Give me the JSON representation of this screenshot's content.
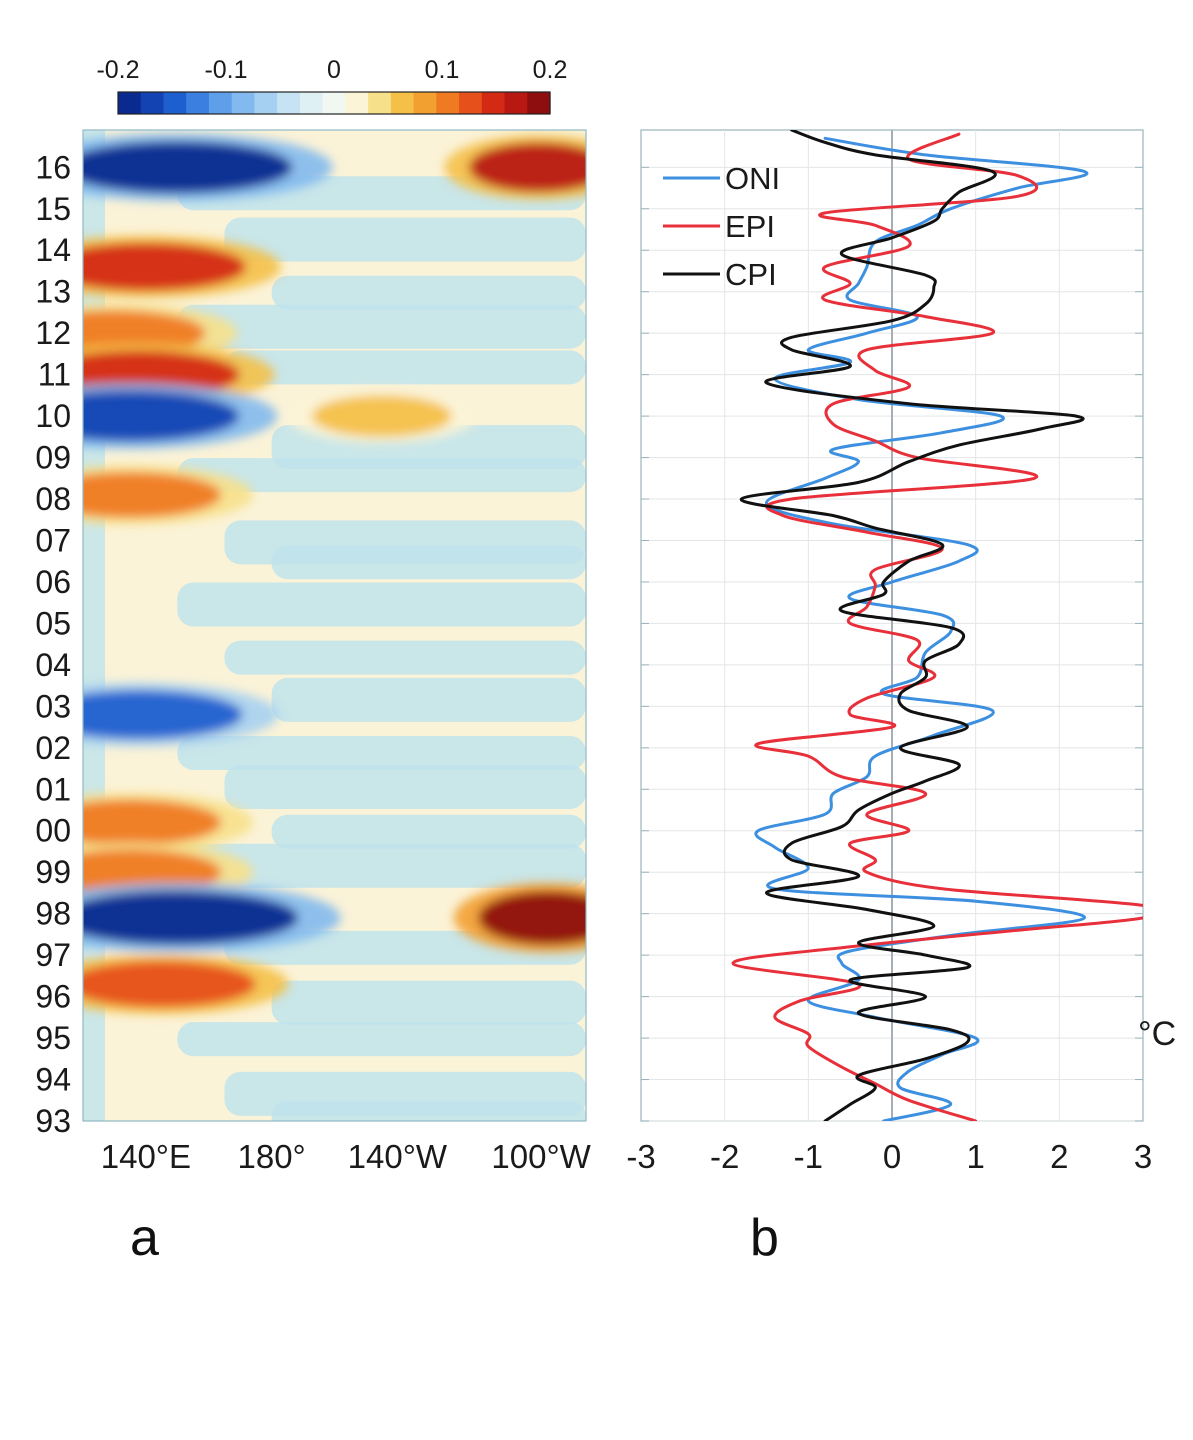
{
  "colorbar": {
    "tick_labels": [
      "-0.2",
      "-0.1",
      "0",
      "0.1",
      "0.2"
    ],
    "tick_values": [
      -0.2,
      -0.1,
      0,
      0.1,
      0.2
    ],
    "range": [
      -0.2,
      0.2
    ],
    "colors": [
      "#0a2a8f",
      "#1342b3",
      "#1e5fcf",
      "#3b80e0",
      "#5f9ee8",
      "#82b9ee",
      "#a6d0f1",
      "#c6e3f3",
      "#dff0f4",
      "#f1f8f1",
      "#fbf4d6",
      "#f7e08a",
      "#f4c048",
      "#f2a030",
      "#ef7a22",
      "#e6501a",
      "#d42a14",
      "#b81812",
      "#8e0d0e"
    ]
  },
  "chart_data": [
    {
      "type": "heatmap",
      "panel_label": "a",
      "x_tick_labels": [
        "140°E",
        "180°",
        "140°W",
        "100°W"
      ],
      "x_range_deg_east": [
        120,
        280
      ],
      "x_ticks_deg_east": [
        140,
        180,
        220,
        260
      ],
      "y_tick_labels": [
        "16",
        "15",
        "14",
        "13",
        "12",
        "11",
        "10",
        "09",
        "08",
        "07",
        "06",
        "05",
        "04",
        "03",
        "02",
        "01",
        "00",
        "99",
        "98",
        "97",
        "96",
        "95",
        "94",
        "93"
      ],
      "y_range": [
        1993,
        2016.9
      ],
      "contour_interval": 0.025,
      "anomalies": [
        {
          "year": 2016.0,
          "lon": 150,
          "value": -0.2
        },
        {
          "year": 2016.0,
          "lon": 265,
          "value": 0.17
        },
        {
          "year": 2013.6,
          "lon": 140,
          "value": 0.15
        },
        {
          "year": 2012.0,
          "lon": 130,
          "value": 0.12
        },
        {
          "year": 2011.0,
          "lon": 138,
          "value": 0.15
        },
        {
          "year": 2010.0,
          "lon": 135,
          "value": -0.18
        },
        {
          "year": 2010.0,
          "lon": 215,
          "value": 0.07
        },
        {
          "year": 2008.1,
          "lon": 135,
          "value": 0.12
        },
        {
          "year": 2002.8,
          "lon": 138,
          "value": -0.16
        },
        {
          "year": 2000.2,
          "lon": 135,
          "value": 0.12
        },
        {
          "year": 1999.0,
          "lon": 135,
          "value": 0.12
        },
        {
          "year": 1997.9,
          "lon": 150,
          "value": -0.22
        },
        {
          "year": 1997.9,
          "lon": 268,
          "value": 0.22
        },
        {
          "year": 1996.3,
          "lon": 145,
          "value": 0.13
        }
      ]
    },
    {
      "type": "line",
      "panel_label": "b",
      "unit_label": "°C",
      "orientation": "horizontal-values-vertical-time",
      "x_tick_labels": [
        "-3",
        "-2",
        "-1",
        "0",
        "1",
        "2",
        "3"
      ],
      "x_range": [
        -3,
        3
      ],
      "y_range": [
        1993,
        2016.9
      ],
      "grid": true,
      "legend_placement": "top-left",
      "series": [
        {
          "name": "ONI",
          "color": "#3d8fe0",
          "points": [
            [
              1993,
              -0.1
            ],
            [
              1993.4,
              0.7
            ],
            [
              1993.8,
              0.1
            ],
            [
              1994.2,
              0.2
            ],
            [
              1994.6,
              0.6
            ],
            [
              1995.0,
              1.0
            ],
            [
              1995.5,
              -0.2
            ],
            [
              1995.9,
              -1.0
            ],
            [
              1996.4,
              -0.4
            ],
            [
              1996.8,
              -0.6
            ],
            [
              1997.1,
              -0.5
            ],
            [
              1997.5,
              0.8
            ],
            [
              1997.9,
              2.3
            ],
            [
              1998.3,
              1.0
            ],
            [
              1998.6,
              -1.4
            ],
            [
              1999.1,
              -1.0
            ],
            [
              1999.6,
              -1.4
            ],
            [
              2000.0,
              -1.6
            ],
            [
              2000.4,
              -0.8
            ],
            [
              2000.9,
              -0.7
            ],
            [
              2001.3,
              -0.3
            ],
            [
              2001.8,
              -0.2
            ],
            [
              2002.3,
              0.5
            ],
            [
              2002.9,
              1.2
            ],
            [
              2003.3,
              -0.1
            ],
            [
              2003.7,
              0.3
            ],
            [
              2004.3,
              0.4
            ],
            [
              2004.8,
              0.7
            ],
            [
              2005.2,
              0.6
            ],
            [
              2005.6,
              -0.5
            ],
            [
              2006.0,
              0.0
            ],
            [
              2006.5,
              0.8
            ],
            [
              2006.9,
              0.9
            ],
            [
              2007.4,
              -0.7
            ],
            [
              2007.9,
              -1.5
            ],
            [
              2008.5,
              -0.8
            ],
            [
              2008.9,
              -0.4
            ],
            [
              2009.2,
              -0.7
            ],
            [
              2009.6,
              0.6
            ],
            [
              2010.0,
              1.3
            ],
            [
              2010.4,
              -0.4
            ],
            [
              2010.9,
              -1.4
            ],
            [
              2011.3,
              -0.5
            ],
            [
              2011.6,
              -1.0
            ],
            [
              2012.0,
              -0.3
            ],
            [
              2012.4,
              0.3
            ],
            [
              2012.8,
              -0.5
            ],
            [
              2013.2,
              -0.4
            ],
            [
              2013.6,
              -0.3
            ],
            [
              2014.2,
              -0.2
            ],
            [
              2014.6,
              0.3
            ],
            [
              2015.0,
              0.7
            ],
            [
              2015.5,
              1.5
            ],
            [
              2015.9,
              2.3
            ],
            [
              2016.3,
              0.4
            ],
            [
              2016.7,
              -0.8
            ]
          ]
        },
        {
          "name": "EPI",
          "color": "#e8303a",
          "points": [
            [
              1993,
              1.0
            ],
            [
              1993.5,
              0.2
            ],
            [
              1993.9,
              -0.2
            ],
            [
              1994.3,
              -0.6
            ],
            [
              1994.8,
              -1.0
            ],
            [
              1995.1,
              -1.0
            ],
            [
              1995.5,
              -1.4
            ],
            [
              1995.9,
              -1.1
            ],
            [
              1996.3,
              -0.4
            ],
            [
              1996.8,
              -1.9
            ],
            [
              1997.2,
              -0.5
            ],
            [
              1997.6,
              1.5
            ],
            [
              1997.9,
              3.0
            ],
            [
              1998.2,
              3.0
            ],
            [
              1998.6,
              0.6
            ],
            [
              1999.0,
              -0.3
            ],
            [
              1999.3,
              -0.2
            ],
            [
              1999.7,
              -0.5
            ],
            [
              2000.0,
              0.2
            ],
            [
              2000.4,
              -0.3
            ],
            [
              2000.9,
              0.4
            ],
            [
              2001.3,
              -0.6
            ],
            [
              2001.8,
              -1.0
            ],
            [
              2002.1,
              -1.6
            ],
            [
              2002.5,
              0.0
            ],
            [
              2002.8,
              -0.5
            ],
            [
              2003.2,
              -0.3
            ],
            [
              2003.7,
              0.5
            ],
            [
              2004.1,
              0.2
            ],
            [
              2004.6,
              0.3
            ],
            [
              2005.0,
              -0.5
            ],
            [
              2005.4,
              -0.3
            ],
            [
              2005.9,
              -0.2
            ],
            [
              2006.3,
              -0.2
            ],
            [
              2006.8,
              0.6
            ],
            [
              2007.2,
              -0.3
            ],
            [
              2007.6,
              -1.3
            ],
            [
              2008.0,
              -1.2
            ],
            [
              2008.5,
              1.7
            ],
            [
              2009.0,
              0.3
            ],
            [
              2009.4,
              -0.2
            ],
            [
              2009.8,
              -0.7
            ],
            [
              2010.3,
              -0.7
            ],
            [
              2010.7,
              0.2
            ],
            [
              2011.1,
              -0.2
            ],
            [
              2011.6,
              -0.3
            ],
            [
              2012.0,
              1.2
            ],
            [
              2012.4,
              0.4
            ],
            [
              2012.8,
              -0.8
            ],
            [
              2013.2,
              -0.5
            ],
            [
              2013.6,
              -0.8
            ],
            [
              2014.1,
              0.2
            ],
            [
              2014.6,
              -0.2
            ],
            [
              2014.9,
              -0.8
            ],
            [
              2015.3,
              1.5
            ],
            [
              2015.8,
              1.5
            ],
            [
              2016.2,
              0.2
            ],
            [
              2016.8,
              0.8
            ]
          ]
        },
        {
          "name": "CPI",
          "color": "#111111",
          "points": [
            [
              1993,
              -0.8
            ],
            [
              1993.4,
              -0.5
            ],
            [
              1993.8,
              -0.2
            ],
            [
              1994.1,
              -0.4
            ],
            [
              1994.5,
              0.4
            ],
            [
              1994.9,
              0.9
            ],
            [
              1995.2,
              0.7
            ],
            [
              1995.6,
              -0.4
            ],
            [
              1996.0,
              0.4
            ],
            [
              1996.4,
              -0.5
            ],
            [
              1996.7,
              0.9
            ],
            [
              1997.0,
              0.4
            ],
            [
              1997.3,
              -0.4
            ],
            [
              1997.7,
              0.5
            ],
            [
              1998.1,
              -0.3
            ],
            [
              1998.5,
              -1.5
            ],
            [
              1998.9,
              -0.4
            ],
            [
              1999.3,
              -1.2
            ],
            [
              1999.7,
              -1.2
            ],
            [
              2000.1,
              -0.6
            ],
            [
              2000.5,
              -0.4
            ],
            [
              2000.9,
              0.0
            ],
            [
              2001.2,
              0.4
            ],
            [
              2001.6,
              0.8
            ],
            [
              2002.0,
              0.1
            ],
            [
              2002.5,
              0.9
            ],
            [
              2002.9,
              0.2
            ],
            [
              2003.3,
              0.1
            ],
            [
              2003.7,
              0.4
            ],
            [
              2004.1,
              0.4
            ],
            [
              2004.5,
              0.8
            ],
            [
              2004.9,
              0.7
            ],
            [
              2005.3,
              -0.6
            ],
            [
              2005.7,
              -0.1
            ],
            [
              2006.0,
              -0.1
            ],
            [
              2006.5,
              0.2
            ],
            [
              2006.9,
              0.6
            ],
            [
              2007.3,
              -0.2
            ],
            [
              2007.6,
              -0.7
            ],
            [
              2008.0,
              -1.8
            ],
            [
              2008.4,
              -0.4
            ],
            [
              2008.9,
              0.2
            ],
            [
              2009.3,
              0.8
            ],
            [
              2009.7,
              1.8
            ],
            [
              2010.0,
              2.2
            ],
            [
              2010.3,
              0.2
            ],
            [
              2010.8,
              -1.5
            ],
            [
              2011.2,
              -0.5
            ],
            [
              2011.6,
              -1.2
            ],
            [
              2011.9,
              -1.2
            ],
            [
              2012.3,
              0.0
            ],
            [
              2012.7,
              0.4
            ],
            [
              2013.1,
              0.5
            ],
            [
              2013.4,
              0.4
            ],
            [
              2013.9,
              -0.6
            ],
            [
              2014.3,
              0.0
            ],
            [
              2014.7,
              0.5
            ],
            [
              2015.0,
              0.6
            ],
            [
              2015.4,
              0.8
            ],
            [
              2015.9,
              1.2
            ],
            [
              2016.3,
              -0.2
            ],
            [
              2016.6,
              -0.8
            ],
            [
              2016.9,
              -1.2
            ]
          ]
        }
      ]
    }
  ]
}
